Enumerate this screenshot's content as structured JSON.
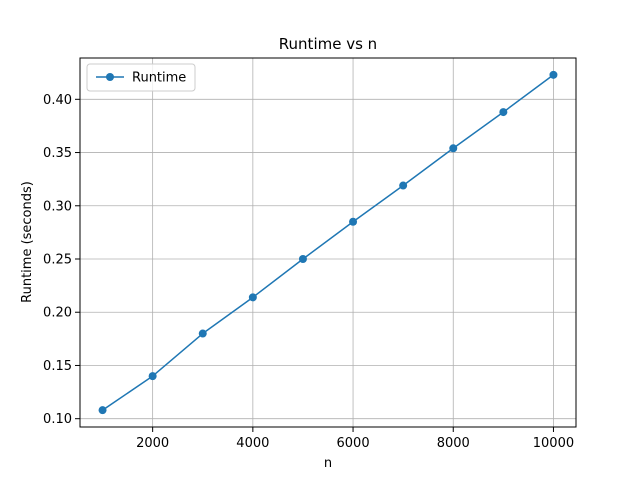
{
  "chart_data": {
    "type": "line",
    "title": "Runtime vs n",
    "xlabel": "n",
    "ylabel": "Runtime (seconds)",
    "x": [
      1000,
      2000,
      3000,
      4000,
      5000,
      6000,
      7000,
      8000,
      9000,
      10000
    ],
    "series": [
      {
        "name": "Runtime",
        "color": "#1f77b4",
        "marker": "circle",
        "values": [
          0.108,
          0.14,
          0.18,
          0.214,
          0.25,
          0.285,
          0.319,
          0.354,
          0.388,
          0.423
        ]
      }
    ],
    "xlim": [
      550,
      10450
    ],
    "ylim": [
      0.0922,
      0.4388
    ],
    "xticks": [
      2000,
      4000,
      6000,
      8000,
      10000
    ],
    "xtick_labels": [
      "2000",
      "4000",
      "6000",
      "8000",
      "10000"
    ],
    "yticks": [
      0.1,
      0.15,
      0.2,
      0.25,
      0.3,
      0.35,
      0.4
    ],
    "ytick_labels": [
      "0.10",
      "0.15",
      "0.20",
      "0.25",
      "0.30",
      "0.35",
      "0.40"
    ],
    "grid": true,
    "legend_position": "upper-left"
  }
}
